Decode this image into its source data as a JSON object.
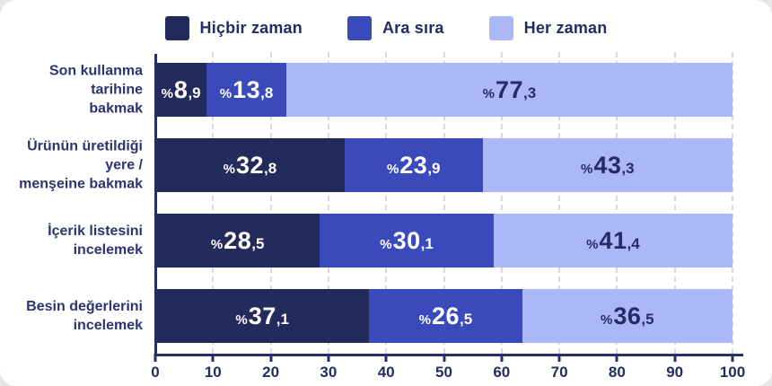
{
  "legend": {
    "items": [
      {
        "label": "Hiçbir zaman",
        "color": "#232a5c"
      },
      {
        "label": "Ara sıra",
        "color": "#3b4abb"
      },
      {
        "label": "Her zaman",
        "color": "#aab8f8"
      }
    ]
  },
  "chart_data": {
    "type": "bar",
    "orientation": "horizontal",
    "stacked": true,
    "unit": "percent",
    "categories": [
      "Son kullanma tarihine bakmak",
      "Ürünün üretildiği yere / menşeine bakmak",
      "İçerik listesini incelemek",
      "Besin değerlerini incelemek"
    ],
    "category_lines": [
      [
        "Son kullanma tarihine",
        "bakmak"
      ],
      [
        "Ürünün üretildiği yere /",
        "menşeine bakmak"
      ],
      [
        "İçerik listesini",
        "incelemek"
      ],
      [
        "Besin değerlerini",
        "incelemek"
      ]
    ],
    "series": [
      {
        "name": "Hiçbir zaman",
        "color": "#232a5c",
        "text_color": "#ffffff",
        "values": [
          8.9,
          32.8,
          28.5,
          37.1
        ],
        "labels": [
          "%8,9",
          "%32,8",
          "%28,5",
          "%37,1"
        ]
      },
      {
        "name": "Ara sıra",
        "color": "#3b4abb",
        "text_color": "#ffffff",
        "values": [
          13.8,
          23.9,
          30.1,
          26.5
        ],
        "labels": [
          "%13,8",
          "%23,9",
          "%30,1",
          "%26,5"
        ]
      },
      {
        "name": "Her zaman",
        "color": "#aab8f8",
        "text_color": "#252c63",
        "values": [
          77.3,
          43.3,
          41.4,
          36.5
        ],
        "labels": [
          "%77,3",
          "%43,3",
          "%41,4",
          "%36,5"
        ]
      }
    ],
    "x_ticks": [
      0,
      10,
      20,
      30,
      40,
      50,
      60,
      70,
      80,
      90,
      100
    ],
    "xlim": [
      0,
      100
    ],
    "grid": "dashed-vertical",
    "legend_position": "top",
    "colors": {
      "axis": "#272f66",
      "grid_line": "#d9d9dd",
      "category_label": "#2b3470",
      "tick_label": "#252c63",
      "card_background": "#ffffff",
      "page_background": "#e7e7e9"
    }
  }
}
